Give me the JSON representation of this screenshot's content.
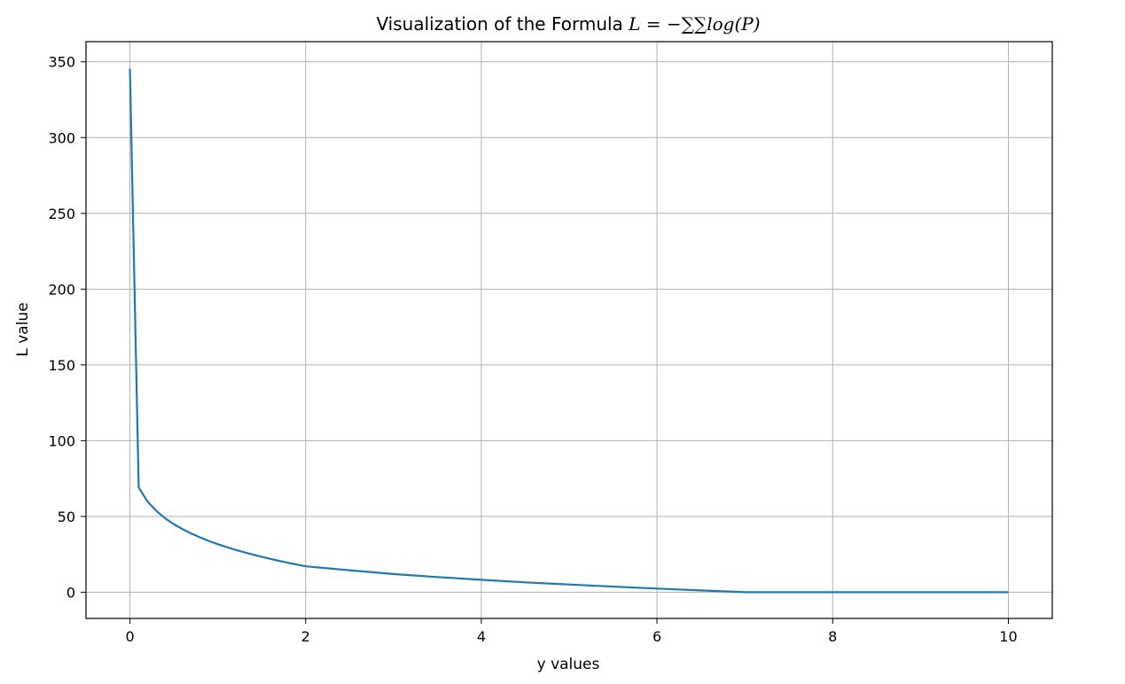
{
  "chart_data": {
    "type": "line",
    "title_prefix": "Visualization of the Formula ",
    "title_formula": "L = −∑∑log(P)",
    "xlabel": "y values",
    "ylabel": "L value",
    "xlim": [
      -0.5,
      10.5
    ],
    "ylim": [
      -17.3,
      363.3
    ],
    "x_ticks": [
      0,
      2,
      4,
      6,
      8,
      10
    ],
    "y_ticks": [
      0,
      50,
      100,
      150,
      200,
      250,
      300,
      350
    ],
    "grid": true,
    "legend": "none",
    "line_color": "#1f77b4",
    "series": [
      {
        "x": [
          0,
          0.1,
          0.2,
          0.3,
          0.4,
          0.5,
          0.6,
          0.7,
          0.8,
          0.9,
          1.0,
          1.2,
          1.4,
          1.6,
          1.8,
          2.0,
          2.5,
          3.0,
          3.5,
          4.0,
          4.5,
          5.0,
          5.5,
          6.0,
          6.5,
          7.0,
          7.5,
          8.0,
          8.5,
          9.0,
          9.5,
          10.0
        ],
        "y": [
          345.4,
          69.1,
          59.9,
          53.7,
          48.8,
          44.9,
          41.6,
          38.7,
          36.1,
          33.8,
          31.7,
          28.0,
          24.8,
          22.0,
          19.4,
          17.1,
          14.5,
          12.0,
          10.0,
          8.2,
          6.5,
          5.1,
          3.7,
          2.4,
          1.2,
          0.0,
          0.0,
          0.0,
          0.0,
          0.0,
          0.0,
          0.0
        ]
      }
    ]
  }
}
